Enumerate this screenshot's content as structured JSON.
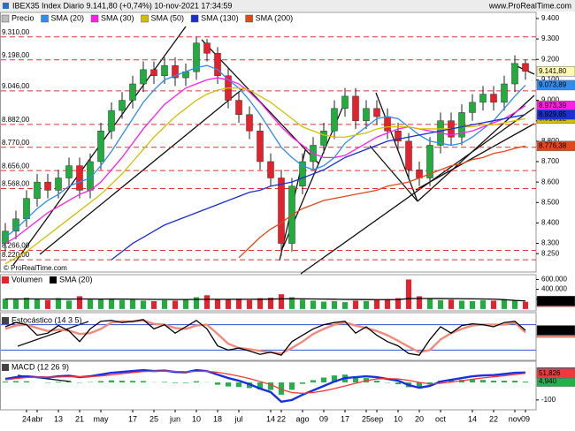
{
  "header": {
    "title": "IBEX35 Index Diario 9.141,80 (+0,74%) 10-nov-2021 17:34:59",
    "site": "www.ProRealTime.com",
    "watermark": "© ProRealTime.com"
  },
  "chart_data": [
    {
      "type": "candlestick",
      "name": "Precio",
      "up_color": "#1fae3c",
      "down_color": "#e8202a",
      "categories": [
        null,
        null,
        "24",
        "abr",
        null,
        "13",
        null,
        "21",
        null,
        "may",
        null,
        null,
        "17",
        null,
        "25",
        null,
        "jun",
        null,
        "10",
        null,
        "18",
        null,
        "jul",
        null,
        null,
        "14",
        "22",
        null,
        "ago",
        null,
        "09",
        null,
        "17",
        null,
        "25",
        "sep",
        null,
        "10",
        null,
        "20",
        null,
        "oct",
        null,
        null,
        "14",
        null,
        "22",
        null,
        "nov",
        "09"
      ],
      "open": [
        8300,
        8360,
        8420,
        8520,
        8600,
        8560,
        8620,
        8680,
        8560,
        8700,
        8850,
        8950,
        9000,
        9080,
        9150,
        9120,
        9170,
        9110,
        9140,
        9280,
        9230,
        9120,
        9000,
        8930,
        8850,
        8700,
        8620,
        8300,
        8580,
        8700,
        8780,
        8850,
        8960,
        9020,
        8900,
        8960,
        8920,
        8850,
        8800,
        8660,
        8620,
        8780,
        8900,
        8820,
        8940,
        8990,
        9030,
        8990,
        9080,
        9180
      ],
      "high": [
        8400,
        8460,
        8560,
        8640,
        8640,
        8660,
        8720,
        8720,
        8740,
        8890,
        8990,
        9040,
        9120,
        9190,
        9190,
        9210,
        9210,
        9180,
        9310,
        9300,
        9260,
        9160,
        9040,
        8970,
        8890,
        8740,
        8660,
        8620,
        8740,
        8820,
        8890,
        9000,
        9060,
        9060,
        9000,
        9000,
        8960,
        8890,
        8840,
        8700,
        8820,
        8940,
        8940,
        8980,
        9030,
        9070,
        9070,
        9120,
        9220,
        9200
      ],
      "low": [
        8260,
        8320,
        8380,
        8480,
        8520,
        8520,
        8580,
        8520,
        8520,
        8660,
        8810,
        8910,
        8960,
        9040,
        9080,
        9080,
        9070,
        9070,
        9100,
        9190,
        9080,
        8960,
        8890,
        8810,
        8660,
        8580,
        8240,
        8260,
        8540,
        8660,
        8740,
        8810,
        8920,
        8860,
        8860,
        8880,
        8810,
        8760,
        8620,
        8580,
        8580,
        8740,
        8780,
        8780,
        8900,
        8950,
        8950,
        8950,
        9040,
        9100
      ],
      "close": [
        8360,
        8420,
        8520,
        8600,
        8560,
        8620,
        8680,
        8560,
        8700,
        8850,
        8950,
        9000,
        9080,
        9150,
        9120,
        9170,
        9110,
        9140,
        9280,
        9230,
        9120,
        9000,
        8930,
        8850,
        8700,
        8620,
        8300,
        8580,
        8700,
        8780,
        8850,
        8960,
        9020,
        8900,
        8960,
        8920,
        8850,
        8800,
        8660,
        8620,
        8780,
        8900,
        8820,
        8940,
        8990,
        9030,
        8990,
        9080,
        9180,
        9141.8
      ],
      "last_label": "9.141,80",
      "ylim": [
        8160,
        9430
      ],
      "yticks": [
        {
          "value": 8250,
          "label": "8.250"
        },
        {
          "value": 8300,
          "label": "8.300"
        },
        {
          "value": 8400,
          "label": "8.400"
        },
        {
          "value": 8500,
          "label": "8.500"
        },
        {
          "value": 8600,
          "label": "8.600"
        },
        {
          "value": 8700,
          "label": "8.700"
        },
        {
          "value": 8800,
          "label": "8.800"
        },
        {
          "value": 8900,
          "label": "8.900"
        },
        {
          "value": 9000,
          "label": "9.000"
        },
        {
          "value": 9100,
          "label": "9.100"
        },
        {
          "value": 9200,
          "label": "9.200"
        },
        {
          "value": 9300,
          "label": "9.300"
        },
        {
          "value": 9400,
          "label": "9.400"
        }
      ],
      "levels": [
        {
          "value": 9310,
          "label": "9.310,00"
        },
        {
          "value": 9198,
          "label": "9.198,00"
        },
        {
          "value": 9046,
          "label": "9.046,00"
        },
        {
          "value": 8882,
          "label": "8.882,00"
        },
        {
          "value": 8770,
          "label": "8.770,00"
        },
        {
          "value": 8656,
          "label": "8.656,00"
        },
        {
          "value": 8568,
          "label": "8.568,00"
        },
        {
          "value": 8266,
          "label": "8.266,00"
        },
        {
          "value": 8220,
          "label": "8.220,00"
        }
      ],
      "series": [
        {
          "name": "SMA (20)",
          "color": "#2f8cf0",
          "last_label": "9.073,89",
          "values": [
            8330,
            8370,
            8420,
            8470,
            8510,
            8540,
            8580,
            8600,
            8620,
            8680,
            8750,
            8830,
            8910,
            8990,
            9050,
            9100,
            9120,
            9140,
            9160,
            9170,
            9150,
            9100,
            9060,
            9000,
            8930,
            8850,
            8770,
            8720,
            8680,
            8660,
            8680,
            8720,
            8790,
            8830,
            8870,
            8910,
            8920,
            8910,
            8870,
            8830,
            8800,
            8790,
            8780,
            8790,
            8820,
            8860,
            8900,
            8960,
            9020,
            9073.89
          ]
        },
        {
          "name": "SMA (30)",
          "color": "#ff1ee6",
          "last_label": "8.973,39",
          "values": [
            8300,
            8330,
            8370,
            8410,
            8450,
            8480,
            8510,
            8540,
            8560,
            8600,
            8660,
            8720,
            8790,
            8860,
            8920,
            8980,
            9020,
            9060,
            9080,
            9100,
            9110,
            9100,
            9080,
            9040,
            8990,
            8930,
            8870,
            8820,
            8780,
            8740,
            8720,
            8720,
            8730,
            8760,
            8790,
            8820,
            8840,
            8860,
            8870,
            8860,
            8850,
            8840,
            8830,
            8840,
            8850,
            8870,
            8890,
            8910,
            8940,
            8973.39
          ]
        },
        {
          "name": "SMA (50)",
          "color": "#d2c000",
          "last_label": "8.910,12",
          "values": [
            8200,
            8230,
            8260,
            8300,
            8340,
            8380,
            8420,
            8460,
            8500,
            8540,
            8590,
            8640,
            8700,
            8760,
            8820,
            8870,
            8920,
            8960,
            9000,
            9030,
            9050,
            9060,
            9060,
            9050,
            9020,
            8990,
            8950,
            8910,
            8870,
            8850,
            8830,
            8820,
            8820,
            8830,
            8840,
            8860,
            8870,
            8870,
            8870,
            8860,
            8860,
            8860,
            8860,
            8870,
            8870,
            8880,
            8880,
            8890,
            8900,
            8910.12
          ]
        },
        {
          "name": "SMA (130)",
          "color": "#1a2fd0",
          "last_label": "8.929,85",
          "values": [
            null,
            null,
            null,
            null,
            null,
            null,
            null,
            null,
            null,
            null,
            8220,
            8260,
            8300,
            8330,
            8360,
            8390,
            8410,
            8430,
            8450,
            8470,
            8490,
            8510,
            8530,
            8550,
            8560,
            8580,
            8590,
            8600,
            8620,
            8640,
            8660,
            8690,
            8720,
            8740,
            8760,
            8780,
            8800,
            8810,
            8820,
            8830,
            8840,
            8850,
            8860,
            8870,
            8880,
            8890,
            8900,
            8910,
            8920,
            8929.85
          ]
        },
        {
          "name": "SMA (200)",
          "color": "#e2481a",
          "last_label": "8.776,38",
          "values": [
            null,
            null,
            null,
            null,
            null,
            null,
            null,
            null,
            null,
            null,
            null,
            null,
            null,
            null,
            null,
            null,
            null,
            null,
            null,
            null,
            null,
            null,
            8230,
            8280,
            8330,
            8370,
            8400,
            8440,
            8470,
            8490,
            8510,
            8520,
            8530,
            8540,
            8550,
            8560,
            8580,
            8590,
            8600,
            8620,
            8640,
            8660,
            8680,
            8690,
            8710,
            8720,
            8740,
            8750,
            8765,
            8776.38
          ]
        }
      ]
    },
    {
      "type": "bar",
      "name": "Volumen",
      "last_label": "146.839",
      "values": [
        210000,
        190000,
        230000,
        200000,
        180000,
        220000,
        170000,
        260000,
        190000,
        200000,
        210000,
        180000,
        190000,
        170000,
        160000,
        180000,
        170000,
        190000,
        240000,
        280000,
        200000,
        190000,
        210000,
        180000,
        220000,
        230000,
        300000,
        240000,
        190000,
        170000,
        150000,
        160000,
        140000,
        170000,
        160000,
        180000,
        200000,
        220000,
        600000,
        260000,
        210000,
        180000,
        190000,
        170000,
        160000,
        180000,
        170000,
        190000,
        180000,
        146839
      ],
      "ylim": [
        -20000,
        680000
      ],
      "yticks": [
        {
          "value": 200000,
          "label": "200.000"
        },
        {
          "value": 400000,
          "label": "400.000"
        },
        {
          "value": 600000,
          "label": "600.000"
        }
      ],
      "series": [
        {
          "name": "SMA (20)",
          "color": "#000000",
          "last_label": "164.098",
          "values": [
            205000,
            203000,
            204000,
            204000,
            202000,
            203000,
            201000,
            204000,
            203000,
            202000,
            203000,
            201000,
            200000,
            198000,
            196000,
            195000,
            193000,
            193000,
            195000,
            198000,
            198000,
            197000,
            198000,
            197000,
            199000,
            201000,
            206000,
            208000,
            207000,
            205000,
            202000,
            199000,
            196000,
            194000,
            192000,
            191000,
            191000,
            192000,
            212000,
            214000,
            213000,
            212000,
            211000,
            209000,
            206000,
            204000,
            200000,
            190000,
            175000,
            164098
          ]
        }
      ]
    },
    {
      "type": "line",
      "name": "Estocástico (14 3 5)",
      "ylim": [
        0,
        100
      ],
      "hlines": [
        80,
        20
      ],
      "series": [
        {
          "color": "#f08a7a",
          "thick": true,
          "last_label": "61,432",
          "values": [
            70,
            78,
            80,
            72,
            65,
            68,
            66,
            58,
            60,
            70,
            85,
            88,
            87,
            90,
            82,
            80,
            72,
            70,
            78,
            80,
            58,
            35,
            25,
            22,
            18,
            15,
            12,
            25,
            40,
            58,
            70,
            80,
            85,
            78,
            72,
            65,
            55,
            42,
            28,
            15,
            20,
            45,
            60,
            70,
            78,
            80,
            80,
            80,
            85,
            61.432
          ]
        },
        {
          "color": "#000000",
          "last_label": "66,601",
          "values": [
            75,
            85,
            80,
            55,
            60,
            78,
            65,
            40,
            70,
            88,
            90,
            85,
            88,
            92,
            70,
            80,
            60,
            75,
            90,
            70,
            30,
            20,
            25,
            18,
            10,
            15,
            8,
            40,
            55,
            70,
            80,
            85,
            88,
            60,
            75,
            55,
            40,
            30,
            12,
            8,
            45,
            75,
            60,
            78,
            82,
            80,
            75,
            85,
            88,
            66.601
          ]
        }
      ]
    },
    {
      "type": "macd",
      "name": "MACD (12 26 9)",
      "ylim": [
        -146,
        111
      ],
      "yticks": [
        -100
      ],
      "histogram": {
        "color": "#22b24a",
        "last_label": "4,940",
        "values": [
          5,
          8,
          7,
          0,
          -2,
          4,
          5,
          -2,
          2,
          8,
          12,
          10,
          9,
          8,
          1,
          3,
          -3,
          -3,
          7,
          1,
          -13,
          -23,
          -26,
          -32,
          -40,
          -43,
          -70,
          -42,
          -8,
          13,
          28,
          40,
          45,
          35,
          25,
          10,
          -2,
          -10,
          -27,
          -30,
          -12,
          10,
          13,
          15,
          17,
          14,
          10,
          10,
          10,
          4.94
        ]
      },
      "series": [
        {
          "color": "#1a2fe0",
          "thick": true,
          "last_label": "56,766",
          "values": [
            20,
            30,
            35,
            30,
            28,
            35,
            38,
            30,
            35,
            45,
            55,
            60,
            65,
            70,
            65,
            68,
            60,
            58,
            70,
            65,
            45,
            25,
            10,
            -10,
            -35,
            -55,
            -110,
            -100,
            -70,
            -45,
            -20,
            5,
            25,
            30,
            35,
            30,
            20,
            10,
            -15,
            -30,
            -20,
            5,
            15,
            25,
            35,
            40,
            42,
            48,
            55,
            56.766
          ]
        },
        {
          "color": "#f03a3a",
          "last_label": "51,826",
          "values": [
            15,
            22,
            28,
            30,
            30,
            31,
            33,
            32,
            33,
            37,
            43,
            50,
            56,
            62,
            64,
            65,
            63,
            61,
            63,
            64,
            58,
            48,
            36,
            22,
            5,
            -12,
            -40,
            -58,
            -62,
            -58,
            -48,
            -35,
            -20,
            -5,
            10,
            20,
            22,
            20,
            12,
            0,
            -8,
            -5,
            2,
            10,
            18,
            26,
            32,
            38,
            45,
            51.826
          ]
        }
      ]
    }
  ]
}
